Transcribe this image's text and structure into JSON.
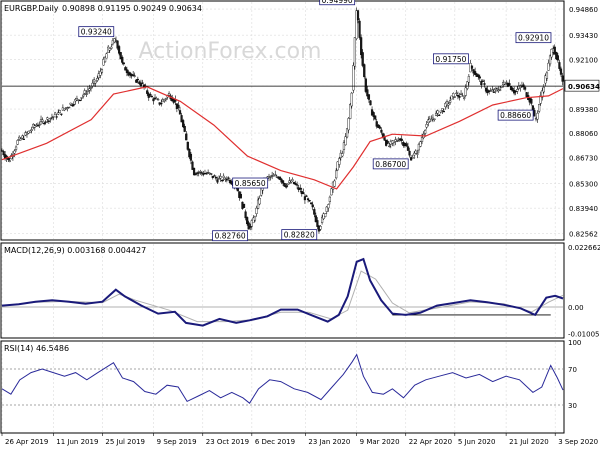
{
  "header": {
    "symbol": "EURGBP.Daily",
    "ohlc": "0.90898 0.91195 0.90249 0.90634"
  },
  "watermark": "ActionForex.com",
  "chart_data": [
    {
      "type": "candlestick",
      "title": "EURGBP.Daily 0.90898 0.91195 0.90249 0.90634",
      "ylim": [
        0.8225,
        0.9525
      ],
      "y_ticks": [
        0.9486,
        0.9343,
        0.921,
        0.9063,
        0.8938,
        0.8806,
        0.8673,
        0.853,
        0.8394,
        0.8256
      ],
      "y_tick_labels": [
        "0.94860",
        "0.93430",
        "0.92100",
        "0.90634",
        "0.89380",
        "0.88060",
        "0.86730",
        "0.85300",
        "0.83940",
        "0.82562"
      ],
      "current_price": 0.90634,
      "current_price_label": "0.90634",
      "x_ticks": [
        "26 Apr 2019",
        "11 Jun 2019",
        "25 Jul 2019",
        "9 Sep 2019",
        "23 Oct 2019",
        "6 Dec 2019",
        "23 Jan 2020",
        "9 Mar 2020",
        "22 Apr 2020",
        "5 Jun 2020",
        "21 Jul 2020",
        "3 Sep 2020"
      ],
      "x_range_days": [
        0,
        503
      ],
      "x_tick_days": [
        0,
        46,
        90,
        136,
        180,
        224,
        272,
        318,
        362,
        406,
        452,
        496
      ],
      "price_path": [
        [
          0,
          0.871
        ],
        [
          6,
          0.865
        ],
        [
          14,
          0.876
        ],
        [
          22,
          0.88
        ],
        [
          30,
          0.885
        ],
        [
          40,
          0.888
        ],
        [
          50,
          0.891
        ],
        [
          60,
          0.896
        ],
        [
          70,
          0.9
        ],
        [
          80,
          0.906
        ],
        [
          86,
          0.911
        ],
        [
          95,
          0.926
        ],
        [
          102,
          0.9324
        ],
        [
          108,
          0.918
        ],
        [
          116,
          0.912
        ],
        [
          126,
          0.907
        ],
        [
          132,
          0.901
        ],
        [
          142,
          0.897
        ],
        [
          150,
          0.902
        ],
        [
          155,
          0.898
        ],
        [
          160,
          0.89
        ],
        [
          166,
          0.874
        ],
        [
          172,
          0.859
        ],
        [
          178,
          0.859
        ],
        [
          186,
          0.858
        ],
        [
          194,
          0.855
        ],
        [
          202,
          0.856
        ],
        [
          210,
          0.852
        ],
        [
          216,
          0.84
        ],
        [
          222,
          0.8276
        ],
        [
          228,
          0.838
        ],
        [
          234,
          0.854
        ],
        [
          240,
          0.8565
        ],
        [
          248,
          0.857
        ],
        [
          254,
          0.852
        ],
        [
          260,
          0.854
        ],
        [
          266,
          0.85
        ],
        [
          272,
          0.845
        ],
        [
          278,
          0.84
        ],
        [
          284,
          0.8282
        ],
        [
          290,
          0.838
        ],
        [
          296,
          0.85
        ],
        [
          302,
          0.866
        ],
        [
          306,
          0.872
        ],
        [
          310,
          0.884
        ],
        [
          314,
          0.906
        ],
        [
          318,
          0.9499
        ],
        [
          322,
          0.925
        ],
        [
          326,
          0.905
        ],
        [
          330,
          0.895
        ],
        [
          336,
          0.885
        ],
        [
          342,
          0.879
        ],
        [
          346,
          0.873
        ],
        [
          350,
          0.875
        ],
        [
          356,
          0.878
        ],
        [
          362,
          0.874
        ],
        [
          366,
          0.867
        ],
        [
          372,
          0.87
        ],
        [
          380,
          0.885
        ],
        [
          388,
          0.89
        ],
        [
          396,
          0.894
        ],
        [
          406,
          0.902
        ],
        [
          414,
          0.9
        ],
        [
          420,
          0.9175
        ],
        [
          428,
          0.91
        ],
        [
          436,
          0.903
        ],
        [
          444,
          0.904
        ],
        [
          452,
          0.909
        ],
        [
          460,
          0.903
        ],
        [
          466,
          0.907
        ],
        [
          474,
          0.898
        ],
        [
          478,
          0.8866
        ],
        [
          484,
          0.903
        ],
        [
          490,
          0.918
        ],
        [
          494,
          0.9291
        ],
        [
          498,
          0.92
        ],
        [
          503,
          0.90634
        ]
      ],
      "moving_average": {
        "name": "",
        "points": [
          [
            0,
            0.866
          ],
          [
            40,
            0.875
          ],
          [
            80,
            0.888
          ],
          [
            100,
            0.902
          ],
          [
            130,
            0.906
          ],
          [
            160,
            0.898
          ],
          [
            190,
            0.885
          ],
          [
            220,
            0.868
          ],
          [
            250,
            0.86
          ],
          [
            280,
            0.855
          ],
          [
            300,
            0.85
          ],
          [
            315,
            0.862
          ],
          [
            330,
            0.876
          ],
          [
            350,
            0.88
          ],
          [
            380,
            0.879
          ],
          [
            410,
            0.887
          ],
          [
            440,
            0.896
          ],
          [
            470,
            0.9
          ],
          [
            490,
            0.901
          ],
          [
            503,
            0.905
          ]
        ]
      },
      "annotations": [
        {
          "label": "0.93240",
          "day": 102,
          "value": 0.9324
        },
        {
          "label": "0.94990",
          "day": 318,
          "value": 0.9499
        },
        {
          "label": "0.91750",
          "day": 420,
          "value": 0.9175
        },
        {
          "label": "0.92910",
          "day": 494,
          "value": 0.9291
        },
        {
          "label": "0.86700",
          "day": 366,
          "value": 0.867
        },
        {
          "label": "0.88660",
          "day": 478,
          "value": 0.8866
        },
        {
          "label": "0.85650",
          "day": 240,
          "value": 0.8565
        },
        {
          "label": "0.82760",
          "day": 222,
          "value": 0.8276
        },
        {
          "label": "0.82820",
          "day": 284,
          "value": 0.8282
        }
      ]
    },
    {
      "type": "line",
      "title": "MACD(12,26,9) 0.003168 0.004427",
      "ylim": [
        -0.0113,
        0.0237
      ],
      "y_ticks": [
        0.022662,
        0.0,
        -0.010052
      ],
      "y_tick_labels": [
        "0.022662",
        "0.00",
        "-0.010052"
      ],
      "series": [
        {
          "name": "",
          "role": "macd",
          "points": [
            [
              0,
              0.0005
            ],
            [
              15,
              0.001
            ],
            [
              30,
              0.002
            ],
            [
              45,
              0.0025
            ],
            [
              60,
              0.002
            ],
            [
              75,
              0.0012
            ],
            [
              90,
              0.002
            ],
            [
              102,
              0.0065
            ],
            [
              110,
              0.004
            ],
            [
              125,
              0.0005
            ],
            [
              140,
              -0.0025
            ],
            [
              155,
              -0.0018
            ],
            [
              165,
              -0.006
            ],
            [
              180,
              -0.007
            ],
            [
              195,
              -0.0045
            ],
            [
              210,
              -0.006
            ],
            [
              222,
              -0.005
            ],
            [
              238,
              -0.0035
            ],
            [
              250,
              -0.001
            ],
            [
              265,
              -0.001
            ],
            [
              280,
              -0.0035
            ],
            [
              292,
              -0.0055
            ],
            [
              302,
              -0.003
            ],
            [
              310,
              0.004
            ],
            [
              318,
              0.017
            ],
            [
              324,
              0.018
            ],
            [
              330,
              0.01
            ],
            [
              340,
              0.0025
            ],
            [
              350,
              -0.0025
            ],
            [
              362,
              -0.003
            ],
            [
              375,
              -0.0022
            ],
            [
              390,
              0.0005
            ],
            [
              405,
              0.0015
            ],
            [
              420,
              0.0025
            ],
            [
              435,
              0.0018
            ],
            [
              450,
              0.0008
            ],
            [
              465,
              -0.0005
            ],
            [
              478,
              -0.003
            ],
            [
              488,
              0.0035
            ],
            [
              496,
              0.0042
            ],
            [
              503,
              0.0032
            ]
          ]
        },
        {
          "name": "",
          "role": "signal",
          "points": [
            [
              0,
              0.0004
            ],
            [
              30,
              0.0018
            ],
            [
              60,
              0.0021
            ],
            [
              90,
              0.0016
            ],
            [
              105,
              0.0048
            ],
            [
              120,
              0.0025
            ],
            [
              150,
              -0.0012
            ],
            [
              175,
              -0.0055
            ],
            [
              200,
              -0.0055
            ],
            [
              225,
              -0.0048
            ],
            [
              250,
              -0.002
            ],
            [
              275,
              -0.002
            ],
            [
              295,
              -0.0045
            ],
            [
              310,
              -0.0012
            ],
            [
              322,
              0.0135
            ],
            [
              335,
              0.0105
            ],
            [
              350,
              0.0015
            ],
            [
              365,
              -0.0022
            ],
            [
              390,
              -0.0004
            ],
            [
              420,
              0.0019
            ],
            [
              450,
              0.0012
            ],
            [
              475,
              -0.0018
            ],
            [
              490,
              0.0018
            ],
            [
              503,
              0.0044
            ]
          ]
        }
      ],
      "zero_line": 0.0,
      "reference_line": {
        "value": -0.003,
        "from_day": 350,
        "to_day": 492
      }
    },
    {
      "type": "line",
      "title": "RSI(14) 46.5486",
      "ylim": [
        0,
        100
      ],
      "y_ticks": [
        100,
        70,
        30,
        0
      ],
      "y_tick_labels": [
        "100",
        "70",
        "30",
        "0"
      ],
      "levels": [
        70,
        30
      ],
      "series": [
        {
          "name": "",
          "role": "rsi",
          "points": [
            [
              0,
              48
            ],
            [
              8,
              42
            ],
            [
              16,
              58
            ],
            [
              26,
              66
            ],
            [
              36,
              70
            ],
            [
              46,
              66
            ],
            [
              56,
              62
            ],
            [
              66,
              66
            ],
            [
              76,
              58
            ],
            [
              86,
              66
            ],
            [
              100,
              77
            ],
            [
              108,
              60
            ],
            [
              118,
              56
            ],
            [
              128,
              45
            ],
            [
              138,
              42
            ],
            [
              148,
              52
            ],
            [
              158,
              50
            ],
            [
              166,
              34
            ],
            [
              176,
              40
            ],
            [
              186,
              46
            ],
            [
              196,
              38
            ],
            [
              206,
              44
            ],
            [
              216,
              38
            ],
            [
              222,
              32
            ],
            [
              230,
              48
            ],
            [
              240,
              58
            ],
            [
              250,
              56
            ],
            [
              262,
              48
            ],
            [
              274,
              44
            ],
            [
              286,
              36
            ],
            [
              296,
              50
            ],
            [
              306,
              64
            ],
            [
              314,
              78
            ],
            [
              318,
              86
            ],
            [
              324,
              62
            ],
            [
              332,
              44
            ],
            [
              342,
              42
            ],
            [
              350,
              48
            ],
            [
              360,
              38
            ],
            [
              370,
              52
            ],
            [
              380,
              58
            ],
            [
              392,
              62
            ],
            [
              404,
              66
            ],
            [
              416,
              60
            ],
            [
              428,
              64
            ],
            [
              440,
              56
            ],
            [
              452,
              62
            ],
            [
              464,
              58
            ],
            [
              476,
              44
            ],
            [
              484,
              50
            ],
            [
              492,
              74
            ],
            [
              498,
              60
            ],
            [
              503,
              46.5
            ]
          ]
        }
      ]
    }
  ]
}
